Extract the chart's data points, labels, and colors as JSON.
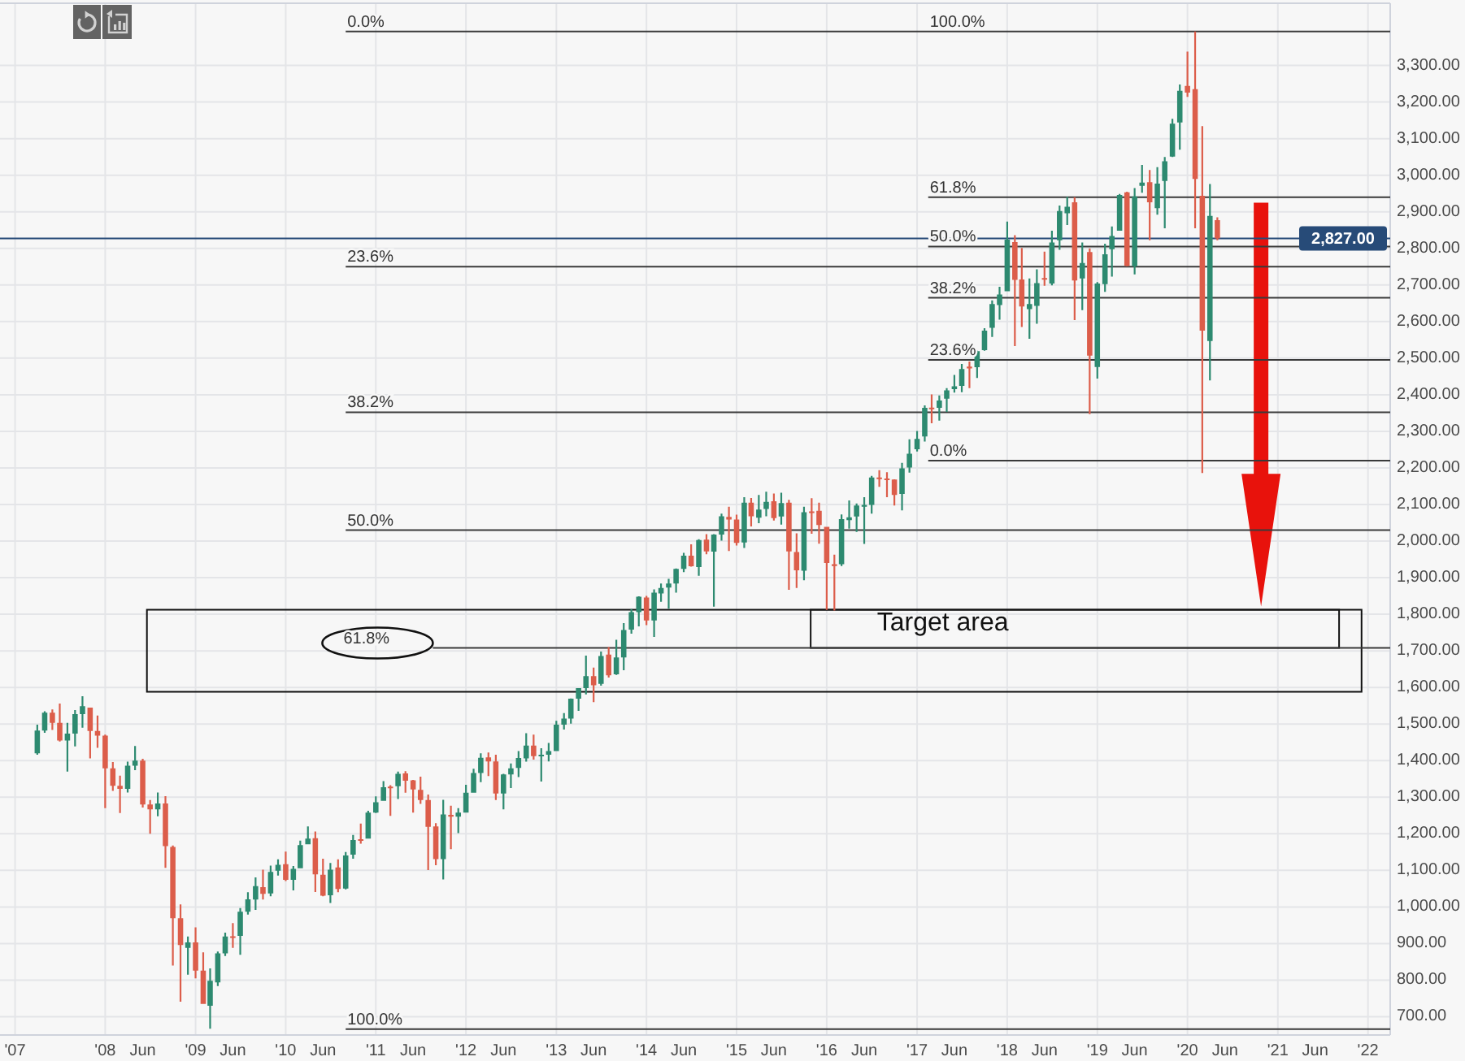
{
  "chart_data": {
    "type": "candlestick",
    "x": [
      "2007-04",
      "2007-05",
      "2007-06",
      "2007-07",
      "2007-08",
      "2007-09",
      "2007-10",
      "2007-11",
      "2007-12",
      "2008-01",
      "2008-02",
      "2008-03",
      "2008-04",
      "2008-05",
      "2008-06",
      "2008-07",
      "2008-08",
      "2008-09",
      "2008-10",
      "2008-11",
      "2008-12",
      "2009-01",
      "2009-02",
      "2009-03",
      "2009-04",
      "2009-05",
      "2009-06",
      "2009-07",
      "2009-08",
      "2009-09",
      "2009-10",
      "2009-11",
      "2009-12",
      "2010-01",
      "2010-02",
      "2010-03",
      "2010-04",
      "2010-05",
      "2010-06",
      "2010-07",
      "2010-08",
      "2010-09",
      "2010-10",
      "2010-11",
      "2010-12",
      "2011-01",
      "2011-02",
      "2011-03",
      "2011-04",
      "2011-05",
      "2011-06",
      "2011-07",
      "2011-08",
      "2011-09",
      "2011-10",
      "2011-11",
      "2011-12",
      "2012-01",
      "2012-02",
      "2012-03",
      "2012-04",
      "2012-05",
      "2012-06",
      "2012-07",
      "2012-08",
      "2012-09",
      "2012-10",
      "2012-11",
      "2012-12",
      "2013-01",
      "2013-02",
      "2013-03",
      "2013-04",
      "2013-05",
      "2013-06",
      "2013-07",
      "2013-08",
      "2013-09",
      "2013-10",
      "2013-11",
      "2013-12",
      "2014-01",
      "2014-02",
      "2014-03",
      "2014-04",
      "2014-05",
      "2014-06",
      "2014-07",
      "2014-08",
      "2014-09",
      "2014-10",
      "2014-11",
      "2014-12",
      "2015-01",
      "2015-02",
      "2015-03",
      "2015-04",
      "2015-05",
      "2015-06",
      "2015-07",
      "2015-08",
      "2015-09",
      "2015-10",
      "2015-11",
      "2015-12",
      "2016-01",
      "2016-02",
      "2016-03",
      "2016-04",
      "2016-05",
      "2016-06",
      "2016-07",
      "2016-08",
      "2016-09",
      "2016-10",
      "2016-11",
      "2016-12",
      "2017-01",
      "2017-02",
      "2017-03",
      "2017-04",
      "2017-05",
      "2017-06",
      "2017-07",
      "2017-08",
      "2017-09",
      "2017-10",
      "2017-11",
      "2017-12",
      "2018-01",
      "2018-02",
      "2018-03",
      "2018-04",
      "2018-05",
      "2018-06",
      "2018-07",
      "2018-08",
      "2018-09",
      "2018-10",
      "2018-11",
      "2018-12",
      "2019-01",
      "2019-02",
      "2019-03",
      "2019-04",
      "2019-05",
      "2019-06",
      "2019-07",
      "2019-08",
      "2019-09",
      "2019-10",
      "2019-11",
      "2019-12",
      "2020-01",
      "2020-02",
      "2020-03",
      "2020-04",
      "2020-05"
    ],
    "ohlc": [
      [
        1420,
        1498,
        1416,
        1482
      ],
      [
        1482,
        1535,
        1476,
        1531
      ],
      [
        1531,
        1540,
        1484,
        1503
      ],
      [
        1503,
        1556,
        1452,
        1455
      ],
      [
        1455,
        1503,
        1370,
        1474
      ],
      [
        1474,
        1538,
        1439,
        1527
      ],
      [
        1527,
        1576,
        1490,
        1549
      ],
      [
        1545,
        1545,
        1406,
        1481
      ],
      [
        1481,
        1523,
        1435,
        1468
      ],
      [
        1468,
        1471,
        1270,
        1379
      ],
      [
        1379,
        1396,
        1317,
        1331
      ],
      [
        1331,
        1359,
        1257,
        1323
      ],
      [
        1323,
        1397,
        1313,
        1386
      ],
      [
        1386,
        1440,
        1374,
        1400
      ],
      [
        1400,
        1405,
        1272,
        1280
      ],
      [
        1280,
        1292,
        1200,
        1267
      ],
      [
        1267,
        1313,
        1248,
        1283
      ],
      [
        1283,
        1303,
        1107,
        1166
      ],
      [
        1164,
        1168,
        840,
        969
      ],
      [
        969,
        1007,
        741,
        896
      ],
      [
        888,
        919,
        815,
        903
      ],
      [
        903,
        944,
        805,
        826
      ],
      [
        826,
        876,
        735,
        735
      ],
      [
        730,
        832,
        667,
        798
      ],
      [
        794,
        878,
        784,
        873
      ],
      [
        873,
        930,
        866,
        919
      ],
      [
        920,
        956,
        888,
        919
      ],
      [
        921,
        997,
        869,
        987
      ],
      [
        987,
        1040,
        979,
        1021
      ],
      [
        1020,
        1081,
        992,
        1057
      ],
      [
        1054,
        1102,
        1020,
        1036
      ],
      [
        1037,
        1113,
        1029,
        1096
      ],
      [
        1099,
        1130,
        1086,
        1115
      ],
      [
        1117,
        1151,
        1071,
        1074
      ],
      [
        1074,
        1112,
        1045,
        1104
      ],
      [
        1106,
        1181,
        1106,
        1169
      ],
      [
        1171,
        1220,
        1171,
        1187
      ],
      [
        1188,
        1206,
        1041,
        1089
      ],
      [
        1088,
        1132,
        1029,
        1031
      ],
      [
        1032,
        1120,
        1011,
        1102
      ],
      [
        1108,
        1130,
        1040,
        1049
      ],
      [
        1050,
        1150,
        1048,
        1141
      ],
      [
        1143,
        1197,
        1132,
        1183
      ],
      [
        1185,
        1228,
        1173,
        1181
      ],
      [
        1187,
        1263,
        1187,
        1258
      ],
      [
        1258,
        1302,
        1257,
        1286
      ],
      [
        1290,
        1344,
        1290,
        1327
      ],
      [
        1329,
        1333,
        1249,
        1326
      ],
      [
        1330,
        1370,
        1295,
        1364
      ],
      [
        1365,
        1371,
        1312,
        1345
      ],
      [
        1346,
        1347,
        1258,
        1321
      ],
      [
        1320,
        1356,
        1282,
        1292
      ],
      [
        1292,
        1307,
        1101,
        1219
      ],
      [
        1220,
        1229,
        1114,
        1131
      ],
      [
        1131,
        1293,
        1075,
        1253
      ],
      [
        1252,
        1277,
        1158,
        1247
      ],
      [
        1247,
        1270,
        1202,
        1258
      ],
      [
        1258,
        1334,
        1258,
        1312
      ],
      [
        1312,
        1378,
        1312,
        1366
      ],
      [
        1366,
        1420,
        1341,
        1408
      ],
      [
        1409,
        1422,
        1358,
        1398
      ],
      [
        1398,
        1416,
        1292,
        1310
      ],
      [
        1310,
        1364,
        1267,
        1362
      ],
      [
        1362,
        1392,
        1325,
        1379
      ],
      [
        1380,
        1426,
        1355,
        1407
      ],
      [
        1406,
        1475,
        1397,
        1441
      ],
      [
        1441,
        1471,
        1403,
        1412
      ],
      [
        1412,
        1434,
        1343,
        1416
      ],
      [
        1416,
        1448,
        1398,
        1426
      ],
      [
        1426,
        1509,
        1426,
        1498
      ],
      [
        1498,
        1530,
        1485,
        1515
      ],
      [
        1515,
        1570,
        1501,
        1569
      ],
      [
        1569,
        1598,
        1536,
        1598
      ],
      [
        1598,
        1687,
        1581,
        1631
      ],
      [
        1631,
        1654,
        1560,
        1606
      ],
      [
        1610,
        1698,
        1605,
        1686
      ],
      [
        1690,
        1710,
        1627,
        1633
      ],
      [
        1636,
        1730,
        1634,
        1682
      ],
      [
        1682,
        1776,
        1647,
        1757
      ],
      [
        1758,
        1814,
        1747,
        1806
      ],
      [
        1806,
        1849,
        1767,
        1848
      ],
      [
        1846,
        1850,
        1770,
        1783
      ],
      [
        1783,
        1868,
        1738,
        1859
      ],
      [
        1857,
        1884,
        1834,
        1872
      ],
      [
        1873,
        1897,
        1815,
        1884
      ],
      [
        1884,
        1925,
        1859,
        1924
      ],
      [
        1924,
        1968,
        1915,
        1960
      ],
      [
        1960,
        1991,
        1930,
        1931
      ],
      [
        1929,
        2005,
        1905,
        2003
      ],
      [
        2004,
        2019,
        1964,
        1972
      ],
      [
        1971,
        2019,
        1821,
        2018
      ],
      [
        2018,
        2075,
        2001,
        2068
      ],
      [
        2066,
        2094,
        1973,
        2059
      ],
      [
        2059,
        2072,
        1988,
        1995
      ],
      [
        1996,
        2120,
        1981,
        2105
      ],
      [
        2105,
        2118,
        2040,
        2068
      ],
      [
        2064,
        2126,
        2049,
        2086
      ],
      [
        2088,
        2135,
        2068,
        2107
      ],
      [
        2109,
        2130,
        2056,
        2063
      ],
      [
        2067,
        2132,
        2045,
        2104
      ],
      [
        2105,
        2113,
        1867,
        1972
      ],
      [
        1970,
        2021,
        1872,
        1920
      ],
      [
        1919,
        2094,
        1893,
        2079
      ],
      [
        2081,
        2117,
        2020,
        2080
      ],
      [
        2083,
        2105,
        1993,
        2044
      ],
      [
        2039,
        2039,
        1812,
        1940
      ],
      [
        1937,
        1963,
        1810,
        1932
      ],
      [
        1937,
        2073,
        1932,
        2060
      ],
      [
        2057,
        2111,
        2034,
        2065
      ],
      [
        2067,
        2103,
        2025,
        2097
      ],
      [
        2094,
        2120,
        1992,
        2099
      ],
      [
        2099,
        2178,
        2075,
        2174
      ],
      [
        2174,
        2194,
        2148,
        2171
      ],
      [
        2171,
        2188,
        2120,
        2168
      ],
      [
        2168,
        2169,
        2097,
        2126
      ],
      [
        2129,
        2214,
        2084,
        2199
      ],
      [
        2201,
        2278,
        2187,
        2239
      ],
      [
        2251,
        2301,
        2245,
        2279
      ],
      [
        2286,
        2371,
        2272,
        2364
      ],
      [
        2365,
        2401,
        2322,
        2363
      ],
      [
        2364,
        2398,
        2329,
        2384
      ],
      [
        2389,
        2418,
        2353,
        2412
      ],
      [
        2415,
        2454,
        2406,
        2423
      ],
      [
        2424,
        2484,
        2407,
        2470
      ],
      [
        2477,
        2491,
        2418,
        2472
      ],
      [
        2475,
        2520,
        2446,
        2519
      ],
      [
        2522,
        2582,
        2520,
        2575
      ],
      [
        2583,
        2658,
        2558,
        2648
      ],
      [
        2645,
        2695,
        2605,
        2674
      ],
      [
        2683,
        2873,
        2683,
        2824
      ],
      [
        2817,
        2836,
        2533,
        2714
      ],
      [
        2715,
        2801,
        2585,
        2641
      ],
      [
        2634,
        2718,
        2553,
        2648
      ],
      [
        2643,
        2743,
        2594,
        2705
      ],
      [
        2719,
        2791,
        2698,
        2718
      ],
      [
        2704,
        2848,
        2699,
        2816
      ],
      [
        2822,
        2917,
        2796,
        2902
      ],
      [
        2896,
        2941,
        2864,
        2914
      ],
      [
        2926,
        2940,
        2604,
        2712
      ],
      [
        2718,
        2816,
        2631,
        2760
      ],
      [
        2790,
        2800,
        2347,
        2507
      ],
      [
        2476,
        2708,
        2444,
        2704
      ],
      [
        2702,
        2813,
        2681,
        2784
      ],
      [
        2798,
        2860,
        2723,
        2834
      ],
      [
        2848,
        2949,
        2848,
        2946
      ],
      [
        2953,
        2955,
        2751,
        2752
      ],
      [
        2751,
        2965,
        2729,
        2942
      ],
      [
        2971,
        3028,
        2952,
        2980
      ],
      [
        2981,
        3014,
        2822,
        2926
      ],
      [
        2910,
        3022,
        2892,
        2977
      ],
      [
        2984,
        3050,
        2855,
        3038
      ],
      [
        3051,
        3154,
        3050,
        3141
      ],
      [
        3144,
        3248,
        3070,
        3231
      ],
      [
        3244,
        3338,
        3214,
        3226
      ],
      [
        3235,
        3393,
        2855,
        2990
      ],
      [
        2944,
        3134,
        2186,
        2575
      ],
      [
        2547,
        2976,
        2439,
        2889
      ],
      [
        2877,
        2885,
        2822,
        2827
      ]
    ],
    "colors": [
      "#2d8a70",
      "#2d8a70",
      "#dc5d4a",
      "#dc5d4a",
      "#2d8a70",
      "#2d8a70",
      "#2d8a70",
      "#dc5d4a",
      "#dc5d4a",
      "#dc5d4a",
      "#dc5d4a",
      "#dc5d4a",
      "#2d8a70",
      "#2d8a70",
      "#dc5d4a",
      "#dc5d4a",
      "#2d8a70",
      "#dc5d4a",
      "#dc5d4a",
      "#dc5d4a",
      "#2d8a70",
      "#dc5d4a",
      "#dc5d4a",
      "#2d8a70",
      "#2d8a70",
      "#2d8a70",
      "#dc5d4a",
      "#2d8a70",
      "#2d8a70",
      "#2d8a70",
      "#dc5d4a",
      "#2d8a70",
      "#2d8a70",
      "#dc5d4a",
      "#2d8a70",
      "#2d8a70",
      "#2d8a70",
      "#dc5d4a",
      "#dc5d4a",
      "#2d8a70",
      "#dc5d4a",
      "#2d8a70",
      "#2d8a70",
      "#dc5d4a",
      "#2d8a70",
      "#2d8a70",
      "#2d8a70",
      "#dc5d4a",
      "#2d8a70",
      "#dc5d4a",
      "#dc5d4a",
      "#dc5d4a",
      "#dc5d4a",
      "#dc5d4a",
      "#2d8a70",
      "#dc5d4a",
      "#2d8a70",
      "#2d8a70",
      "#2d8a70",
      "#2d8a70",
      "#dc5d4a",
      "#dc5d4a",
      "#2d8a70",
      "#2d8a70",
      "#2d8a70",
      "#2d8a70",
      "#dc5d4a",
      "#2d8a70",
      "#2d8a70",
      "#2d8a70",
      "#2d8a70",
      "#2d8a70",
      "#2d8a70",
      "#2d8a70",
      "#dc5d4a",
      "#2d8a70",
      "#dc5d4a",
      "#2d8a70",
      "#2d8a70",
      "#2d8a70",
      "#2d8a70",
      "#dc5d4a",
      "#2d8a70",
      "#2d8a70",
      "#2d8a70",
      "#2d8a70",
      "#2d8a70",
      "#dc5d4a",
      "#2d8a70",
      "#dc5d4a",
      "#2d8a70",
      "#2d8a70",
      "#dc5d4a",
      "#dc5d4a",
      "#2d8a70",
      "#dc5d4a",
      "#2d8a70",
      "#2d8a70",
      "#dc5d4a",
      "#2d8a70",
      "#dc5d4a",
      "#dc5d4a",
      "#2d8a70",
      "#dc5d4a",
      "#dc5d4a",
      "#dc5d4a",
      "#dc5d4a",
      "#2d8a70",
      "#2d8a70",
      "#2d8a70",
      "#2d8a70",
      "#2d8a70",
      "#dc5d4a",
      "#dc5d4a",
      "#dc5d4a",
      "#2d8a70",
      "#2d8a70",
      "#2d8a70",
      "#2d8a70",
      "#dc5d4a",
      "#2d8a70",
      "#2d8a70",
      "#2d8a70",
      "#2d8a70",
      "#dc5d4a",
      "#2d8a70",
      "#2d8a70",
      "#2d8a70",
      "#2d8a70",
      "#2d8a70",
      "#dc5d4a",
      "#dc5d4a",
      "#2d8a70",
      "#2d8a70",
      "#dc5d4a",
      "#2d8a70",
      "#2d8a70",
      "#2d8a70",
      "#dc5d4a",
      "#2d8a70",
      "#dc5d4a",
      "#2d8a70",
      "#2d8a70",
      "#2d8a70",
      "#2d8a70",
      "#dc5d4a",
      "#2d8a70",
      "#2d8a70",
      "#dc5d4a",
      "#2d8a70",
      "#2d8a70",
      "#2d8a70",
      "#2d8a70",
      "#dc5d4a",
      "#dc5d4a",
      "#dc5d4a",
      "#2d8a70",
      "#dc5d4a"
    ],
    "xlim": [
      "2006-11",
      "2022-04"
    ],
    "xticks": [
      {
        "value": "2007-01",
        "label": "'07"
      },
      {
        "value": "2008-01",
        "label": "'08"
      },
      {
        "value": "2008-06",
        "label": "Jun"
      },
      {
        "value": "2009-01",
        "label": "'09"
      },
      {
        "value": "2009-06",
        "label": "Jun"
      },
      {
        "value": "2010-01",
        "label": "'10"
      },
      {
        "value": "2010-06",
        "label": "Jun"
      },
      {
        "value": "2011-01",
        "label": "'11"
      },
      {
        "value": "2011-06",
        "label": "Jun"
      },
      {
        "value": "2012-01",
        "label": "'12"
      },
      {
        "value": "2012-06",
        "label": "Jun"
      },
      {
        "value": "2013-01",
        "label": "'13"
      },
      {
        "value": "2013-06",
        "label": "Jun"
      },
      {
        "value": "2014-01",
        "label": "'14"
      },
      {
        "value": "2014-06",
        "label": "Jun"
      },
      {
        "value": "2015-01",
        "label": "'15"
      },
      {
        "value": "2015-06",
        "label": "Jun"
      },
      {
        "value": "2016-01",
        "label": "'16"
      },
      {
        "value": "2016-06",
        "label": "Jun"
      },
      {
        "value": "2017-01",
        "label": "'17"
      },
      {
        "value": "2017-06",
        "label": "Jun"
      },
      {
        "value": "2018-01",
        "label": "'18"
      },
      {
        "value": "2018-06",
        "label": "Jun"
      },
      {
        "value": "2019-01",
        "label": "'19"
      },
      {
        "value": "2019-06",
        "label": "Jun"
      },
      {
        "value": "2020-01",
        "label": "'20"
      },
      {
        "value": "2020-06",
        "label": "Jun"
      },
      {
        "value": "2021-01",
        "label": "'21"
      },
      {
        "value": "2021-06",
        "label": "Jun"
      },
      {
        "value": "2022-01",
        "label": "'22"
      }
    ],
    "ylim": [
      650,
      3470
    ],
    "yticks": [
      {
        "value": 700,
        "label": "700.00"
      },
      {
        "value": 800,
        "label": "800.00"
      },
      {
        "value": 900,
        "label": "900.00"
      },
      {
        "value": 1000,
        "label": "1,000.00"
      },
      {
        "value": 1100,
        "label": "1,100.00"
      },
      {
        "value": 1200,
        "label": "1,200.00"
      },
      {
        "value": 1300,
        "label": "1,300.00"
      },
      {
        "value": 1400,
        "label": "1,400.00"
      },
      {
        "value": 1500,
        "label": "1,500.00"
      },
      {
        "value": 1600,
        "label": "1,600.00"
      },
      {
        "value": 1700,
        "label": "1,700.00"
      },
      {
        "value": 1800,
        "label": "1,800.00"
      },
      {
        "value": 1900,
        "label": "1,900.00"
      },
      {
        "value": 2000,
        "label": "2,000.00"
      },
      {
        "value": 2100,
        "label": "2,100.00"
      },
      {
        "value": 2200,
        "label": "2,200.00"
      },
      {
        "value": 2300,
        "label": "2,300.00"
      },
      {
        "value": 2400,
        "label": "2,400.00"
      },
      {
        "value": 2500,
        "label": "2,500.00"
      },
      {
        "value": 2600,
        "label": "2,600.00"
      },
      {
        "value": 2700,
        "label": "2,700.00"
      },
      {
        "value": 2800,
        "label": "2,800.00"
      },
      {
        "value": 2900,
        "label": "2,900.00"
      },
      {
        "value": 3000,
        "label": "3,000.00"
      },
      {
        "value": 3100,
        "label": "3,100.00"
      },
      {
        "value": 3200,
        "label": "3,200.00"
      },
      {
        "value": 3300,
        "label": "3,300.00"
      }
    ],
    "grid": true,
    "ref_lines": [
      {
        "axis": "y",
        "value": 2827,
        "label": "2,827.00",
        "color": "#274b78"
      },
      {
        "axis": "y",
        "value": 3393
      },
      {
        "axis": "y",
        "value": 2750
      },
      {
        "axis": "y",
        "value": 2352
      },
      {
        "axis": "y",
        "value": 2030
      },
      {
        "axis": "y",
        "value": 1708
      },
      {
        "axis": "y",
        "value": 666
      },
      {
        "axis": "y",
        "value": 2940
      },
      {
        "axis": "y",
        "value": 2805
      },
      {
        "axis": "y",
        "value": 2665
      },
      {
        "axis": "y",
        "value": 2495
      },
      {
        "axis": "y",
        "value": 2220
      }
    ],
    "annotations": [
      {
        "text": "0.0%",
        "x": "2010-09",
        "y": 3393
      },
      {
        "text": "23.6%",
        "x": "2010-09",
        "y": 2750
      },
      {
        "text": "38.2%",
        "x": "2010-09",
        "y": 2352
      },
      {
        "text": "50.0%",
        "x": "2010-09",
        "y": 2030
      },
      {
        "text": "61.8%",
        "x": "2011-08-20",
        "y": 1708
      },
      {
        "text": "100.0%",
        "x": "2010-09",
        "y": 666
      },
      {
        "text": "100.0%",
        "x": "2017-02-15",
        "y": 3393
      },
      {
        "text": "61.8%",
        "x": "2017-02-15",
        "y": 2940
      },
      {
        "text": "50.0%",
        "x": "2017-02-15",
        "y": 2805
      },
      {
        "text": "38.2%",
        "x": "2017-02-15",
        "y": 2665
      },
      {
        "text": "23.6%",
        "x": "2017-02-15",
        "y": 2495
      },
      {
        "text": "0.0%",
        "x": "2017-02-15",
        "y": 2220
      },
      "Target area"
    ]
  }
}
